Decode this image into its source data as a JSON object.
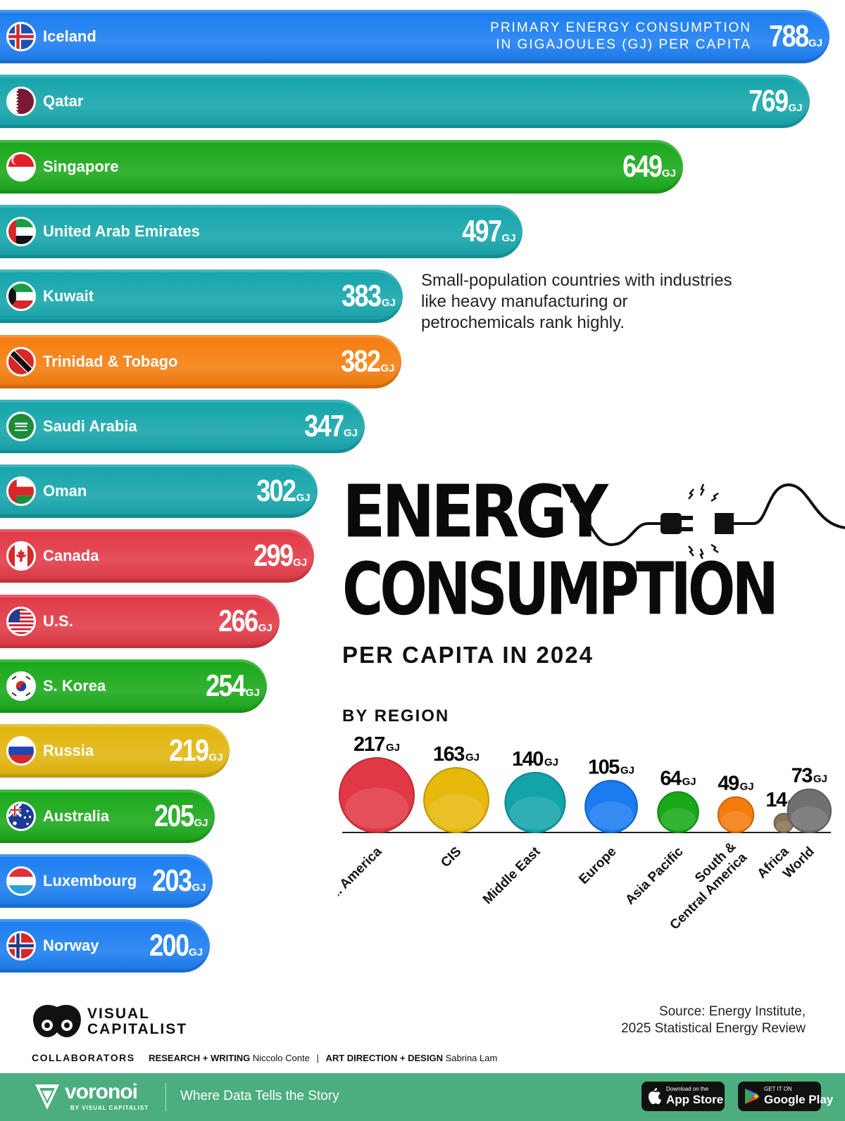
{
  "unit_note": [
    "PRIMARY ENERGY CONSUMPTION",
    "IN GIGAJOULES (GJ) PER CAPITA"
  ],
  "note": "Small-population countries with industries like heavy manufacturing or petrochemicals rank highly.",
  "title_line1": "ENERGY",
  "title_line2": "CONSUMPTION",
  "subtitle": "PER CAPITA IN 2024",
  "region_title": "BY REGION",
  "chart_data": [
    {
      "type": "bar",
      "orientation": "horizontal",
      "unit": "GJ",
      "categories": [
        "Iceland",
        "Qatar",
        "Singapore",
        "United Arab Emirates",
        "Kuwait",
        "Trinidad & Tobago",
        "Saudi Arabia",
        "Oman",
        "Canada",
        "U.S.",
        "S. Korea",
        "Russia",
        "Australia",
        "Luxembourg",
        "Norway"
      ],
      "values": [
        788,
        769,
        649,
        497,
        383,
        382,
        347,
        302,
        299,
        266,
        254,
        219,
        205,
        203,
        200
      ],
      "colors": [
        "#1a7cf0",
        "#13a4aa",
        "#18a818",
        "#13a4aa",
        "#13a4aa",
        "#f57c0c",
        "#13a4aa",
        "#13a4aa",
        "#e03844",
        "#e03844",
        "#18a818",
        "#e0b50c",
        "#18a818",
        "#1a7cf0",
        "#1a7cf0"
      ],
      "flags": [
        "iceland-flag",
        "qatar-flag",
        "singapore-flag",
        "uae-flag",
        "kuwait-flag",
        "trinidad-tobago-flag",
        "saudi-arabia-flag",
        "oman-flag",
        "canada-flag",
        "us-flag",
        "south-korea-flag",
        "russia-flag",
        "australia-flag",
        "luxembourg-flag",
        "norway-flag"
      ]
    },
    {
      "type": "bubble",
      "unit": "GJ",
      "categories": [
        "N. America",
        "CIS",
        "Middle East",
        "Europe",
        "Asia Pacific",
        "South & Central America",
        "Africa",
        "World"
      ],
      "values": [
        217,
        163,
        140,
        105,
        64,
        49,
        14,
        73
      ],
      "colors": [
        "#e03844",
        "#e8b80a",
        "#13a4aa",
        "#1a7cf0",
        "#18a818",
        "#f57c0c",
        "#8b7355",
        "#707070"
      ]
    }
  ],
  "source": [
    "Source: Energy Institute,",
    "2025 Statistical Energy Review"
  ],
  "brand": [
    "VISUAL",
    "CAPITALIST"
  ],
  "collaborators": {
    "label": "COLLABORATORS",
    "research_label": "RESEARCH + WRITING",
    "research_name": "Niccolo Conte",
    "design_label": "ART DIRECTION + DESIGN",
    "design_name": "Sabrina Lam"
  },
  "footer": {
    "brand": "voronoi",
    "brand_sub": "BY VISUAL CAPITALIST",
    "tagline": "Where Data Tells the Story",
    "appstore_small": "Download on the",
    "appstore_big": "App Store",
    "googleplay_small": "GET IT ON",
    "googleplay_big": "Google Play"
  }
}
